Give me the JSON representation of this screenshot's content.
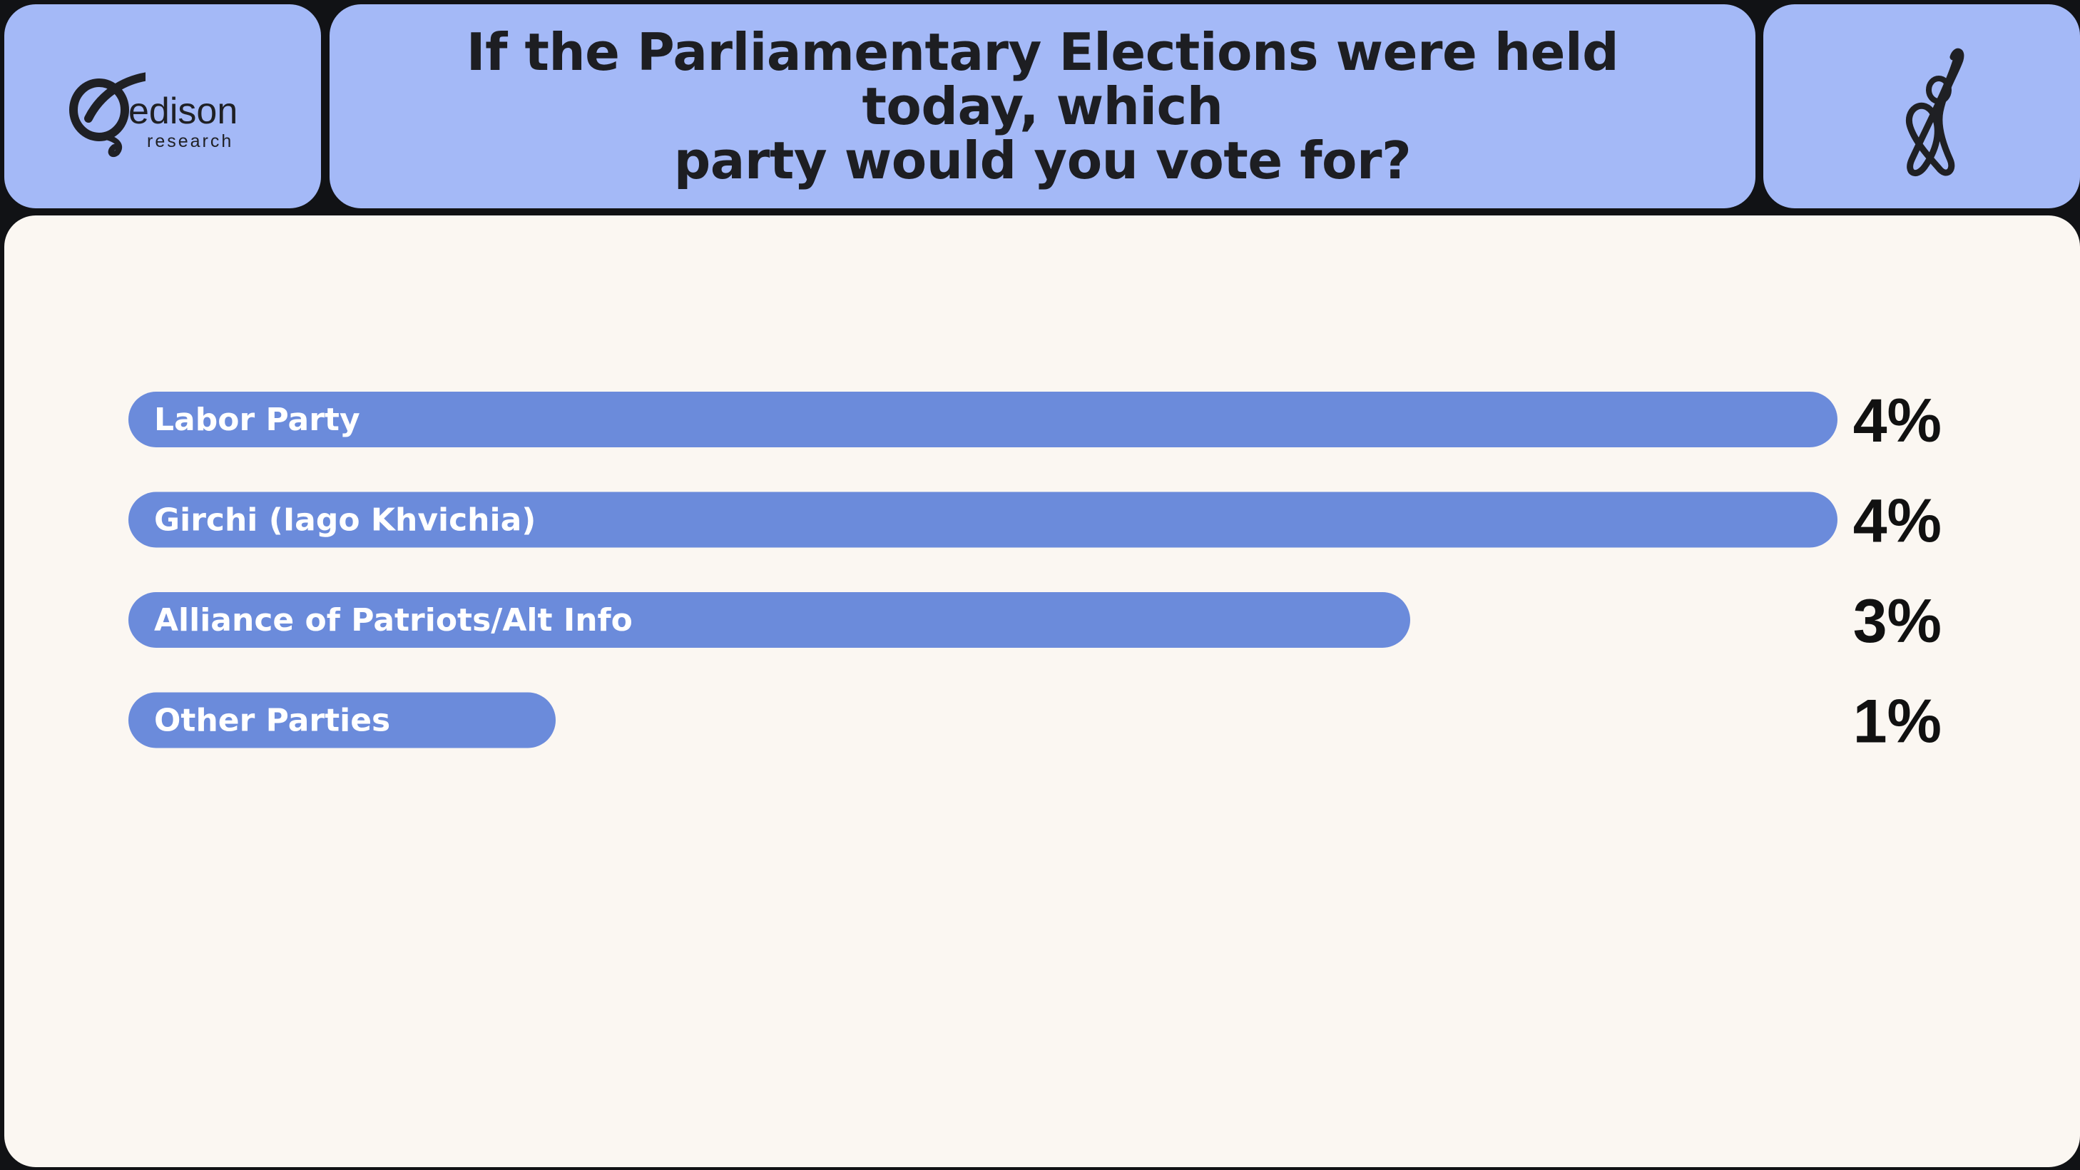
{
  "header": {
    "logo_name": "edison",
    "logo_sub": "research",
    "title_line1": "If the Parliamentary Elections were held today, which",
    "title_line2": "party would you vote for?",
    "brand_icon": "edison-logo-icon",
    "mark_icon": "scribble-mark-icon"
  },
  "colors": {
    "header_panel": "#a4b9f7",
    "bar": "#6b8bdb",
    "chart_background": "#fbf7f2",
    "frame": "#111215"
  },
  "chart_data": {
    "type": "bar",
    "orientation": "horizontal",
    "title": "If the Parliamentary Elections were held today, which party would you vote for?",
    "categories": [
      "Labor Party",
      "Girchi (Iago Khvichia)",
      "Alliance of Patriots/Alt Info",
      "Other Parties"
    ],
    "values": [
      4,
      4,
      3,
      1
    ],
    "value_labels": [
      "4%",
      "4%",
      "3%",
      "1%"
    ],
    "unit": "%",
    "grid": false,
    "legend": "none"
  }
}
